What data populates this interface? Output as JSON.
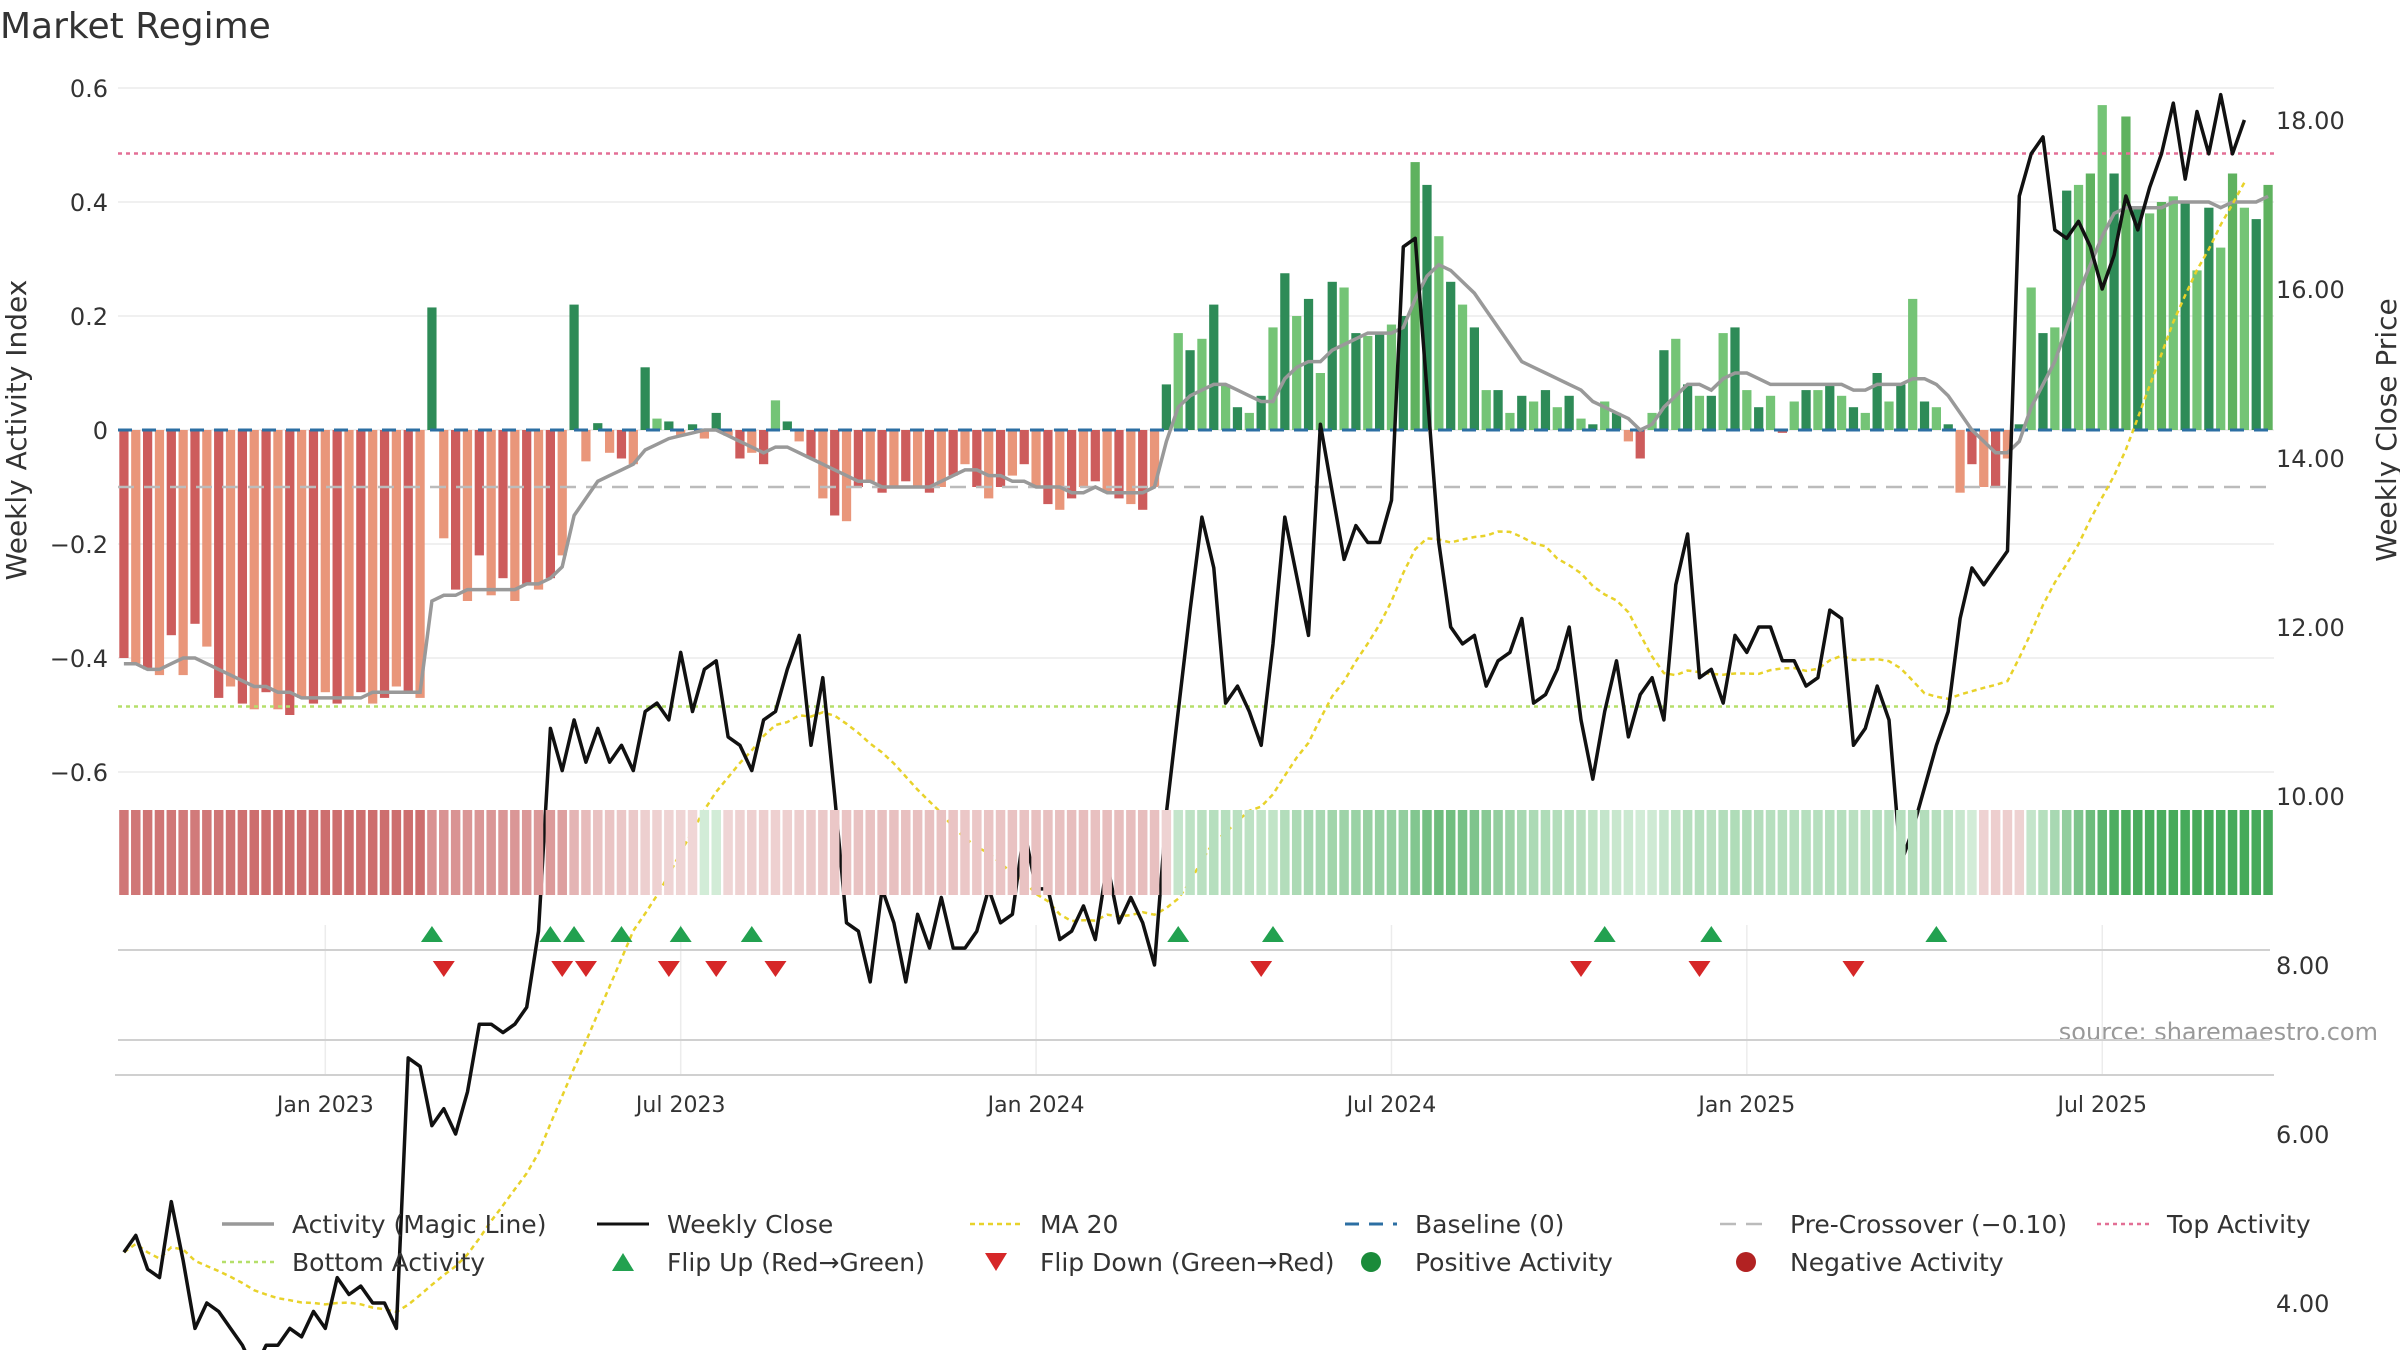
{
  "title": "Market Regime",
  "source": "source: sharemaestro.com",
  "colors": {
    "activity_line": "#999999",
    "close_line": "#111111",
    "ma20": "#e8d22a",
    "baseline": "#2c6fa3",
    "pre_crossover": "#bbbbbb",
    "top": "#e36f95",
    "bottom": "#b5df6a",
    "flip_up": "#22a150",
    "flip_down": "#d62728",
    "positive": "#1a8b3a",
    "negative": "#b22222"
  },
  "legend": [
    {
      "key": "activity",
      "label": "Activity (Magic Line)",
      "style": "line-solid-gray"
    },
    {
      "key": "close",
      "label": "Weekly Close",
      "style": "line-solid-black"
    },
    {
      "key": "ma20",
      "label": "MA 20",
      "style": "line-dotted-yellow"
    },
    {
      "key": "baseline",
      "label": "Baseline (0)",
      "style": "line-dashed-blue"
    },
    {
      "key": "precross",
      "label": "Pre-Crossover (−0.10)",
      "style": "line-dashed-gray"
    },
    {
      "key": "top",
      "label": "Top Activity",
      "style": "line-dotted-pink"
    },
    {
      "key": "bottom",
      "label": "Bottom Activity",
      "style": "line-dotted-green"
    },
    {
      "key": "flipup",
      "label": "Flip Up (Red→Green)",
      "style": "triangle-up"
    },
    {
      "key": "flipdown",
      "label": "Flip Down (Green→Red)",
      "style": "triangle-down"
    },
    {
      "key": "pos",
      "label": "Positive Activity",
      "style": "dot-green"
    },
    {
      "key": "neg",
      "label": "Negative Activity",
      "style": "dot-red"
    }
  ],
  "chart_data": {
    "type": "bar",
    "title": "Market Regime",
    "ylabel_left": "Weekly Activity Index",
    "ylabel_right": "Weekly Close Price",
    "ylim_left": [
      -0.63,
      0.6
    ],
    "ylim_right": [
      1.6,
      19.8
    ],
    "yticks_left": [
      "−0.6",
      "−0.4",
      "−0.2",
      "0",
      "0.2",
      "0.4",
      "0.6"
    ],
    "yticks_left_values": [
      -0.6,
      -0.4,
      -0.2,
      0,
      0.2,
      0.4,
      0.6
    ],
    "yticks_right": [
      "4.00",
      "6.00",
      "8.00",
      "10.00",
      "12.00",
      "14.00",
      "16.00",
      "18.00"
    ],
    "yticks_right_values": [
      4,
      6,
      8,
      10,
      12,
      14,
      16,
      18
    ],
    "xticks": [
      "Jan 2023",
      "Jul 2023",
      "Jan 2024",
      "Jul 2024",
      "Jan 2025",
      "Jul 2025"
    ],
    "xticks_week_index": [
      17,
      47,
      77,
      107,
      137,
      167
    ],
    "reference_lines": {
      "baseline": 0,
      "pre_crossover": -0.1,
      "top_activity": 0.485,
      "bottom_activity": -0.485
    },
    "activity": [
      -0.4,
      -0.41,
      -0.42,
      -0.43,
      -0.36,
      -0.43,
      -0.34,
      -0.38,
      -0.47,
      -0.45,
      -0.48,
      -0.49,
      -0.46,
      -0.49,
      -0.5,
      -0.47,
      -0.48,
      -0.46,
      -0.48,
      -0.47,
      -0.46,
      -0.48,
      -0.47,
      -0.45,
      -0.46,
      -0.47,
      0.215,
      -0.19,
      -0.28,
      -0.3,
      -0.22,
      -0.29,
      -0.26,
      -0.3,
      -0.27,
      -0.28,
      -0.26,
      -0.22,
      0.22,
      -0.055,
      0.012,
      -0.04,
      -0.05,
      -0.06,
      0.11,
      0.02,
      0.015,
      -0.01,
      0.01,
      -0.015,
      0.03,
      -0.01,
      -0.05,
      -0.04,
      -0.06,
      0.052,
      0.015,
      -0.02,
      -0.05,
      -0.12,
      -0.15,
      -0.16,
      -0.1,
      -0.09,
      -0.11,
      -0.1,
      -0.09,
      -0.1,
      -0.11,
      -0.1,
      -0.08,
      -0.06,
      -0.1,
      -0.12,
      -0.1,
      -0.08,
      -0.06,
      -0.1,
      -0.13,
      -0.14,
      -0.12,
      -0.1,
      -0.09,
      -0.11,
      -0.12,
      -0.13,
      -0.14,
      -0.1,
      0.08,
      0.17,
      0.14,
      0.16,
      0.22,
      0.08,
      0.04,
      0.03,
      0.06,
      0.18,
      0.275,
      0.2,
      0.23,
      0.1,
      0.26,
      0.25,
      0.17,
      0.165,
      0.17,
      0.185,
      0.2,
      0.47,
      0.43,
      0.34,
      0.26,
      0.22,
      0.18,
      0.07,
      0.07,
      0.03,
      0.06,
      0.05,
      0.07,
      0.04,
      0.06,
      0.02,
      0.01,
      0.05,
      0.03,
      -0.02,
      -0.05,
      0.03,
      0.14,
      0.16,
      0.08,
      0.06,
      0.06,
      0.17,
      0.18,
      0.07,
      0.04,
      0.06,
      -0.005,
      0.05,
      0.07,
      0.07,
      0.08,
      0.06,
      0.04,
      0.03,
      0.1,
      0.05,
      0.08,
      0.23,
      0.05,
      0.04,
      0.01,
      -0.11,
      -0.06,
      -0.1,
      -0.1,
      -0.05,
      0.01,
      0.25,
      0.17,
      0.18,
      0.42,
      0.43,
      0.45,
      0.57,
      0.45,
      0.55,
      0.39,
      0.38,
      0.4,
      0.41,
      0.4,
      0.28,
      0.39,
      0.32,
      0.45,
      0.39,
      0.37,
      0.43
    ],
    "magic_line": [
      -0.41,
      -0.41,
      -0.42,
      -0.42,
      -0.41,
      -0.4,
      -0.4,
      -0.41,
      -0.42,
      -0.43,
      -0.44,
      -0.45,
      -0.45,
      -0.46,
      -0.46,
      -0.47,
      -0.47,
      -0.47,
      -0.47,
      -0.47,
      -0.47,
      -0.46,
      -0.46,
      -0.46,
      -0.46,
      -0.46,
      -0.3,
      -0.29,
      -0.29,
      -0.28,
      -0.28,
      -0.28,
      -0.28,
      -0.28,
      -0.27,
      -0.27,
      -0.26,
      -0.24,
      -0.15,
      -0.12,
      -0.09,
      -0.08,
      -0.07,
      -0.06,
      -0.035,
      -0.025,
      -0.015,
      -0.01,
      -0.005,
      0.0,
      0.0,
      -0.01,
      -0.02,
      -0.03,
      -0.04,
      -0.03,
      -0.03,
      -0.04,
      -0.05,
      -0.06,
      -0.07,
      -0.08,
      -0.09,
      -0.09,
      -0.1,
      -0.1,
      -0.1,
      -0.1,
      -0.1,
      -0.09,
      -0.08,
      -0.07,
      -0.07,
      -0.08,
      -0.08,
      -0.09,
      -0.09,
      -0.1,
      -0.1,
      -0.1,
      -0.11,
      -0.11,
      -0.1,
      -0.11,
      -0.11,
      -0.11,
      -0.11,
      -0.1,
      -0.02,
      0.04,
      0.06,
      0.07,
      0.08,
      0.08,
      0.07,
      0.06,
      0.05,
      0.05,
      0.09,
      0.11,
      0.12,
      0.12,
      0.14,
      0.15,
      0.16,
      0.17,
      0.17,
      0.17,
      0.18,
      0.23,
      0.27,
      0.29,
      0.28,
      0.26,
      0.24,
      0.21,
      0.18,
      0.15,
      0.12,
      0.11,
      0.1,
      0.09,
      0.08,
      0.07,
      0.05,
      0.04,
      0.03,
      0.02,
      0.0,
      0.01,
      0.04,
      0.06,
      0.08,
      0.08,
      0.07,
      0.09,
      0.1,
      0.1,
      0.09,
      0.08,
      0.08,
      0.08,
      0.08,
      0.08,
      0.08,
      0.08,
      0.07,
      0.07,
      0.08,
      0.08,
      0.08,
      0.09,
      0.09,
      0.08,
      0.06,
      0.03,
      0.0,
      -0.02,
      -0.04,
      -0.04,
      -0.02,
      0.04,
      0.08,
      0.12,
      0.18,
      0.24,
      0.29,
      0.34,
      0.38,
      0.39,
      0.39,
      0.39,
      0.39,
      0.4,
      0.4,
      0.4,
      0.4,
      0.39,
      0.4,
      0.4,
      0.4,
      0.41
    ],
    "weekly_close": [
      4.6,
      4.8,
      4.4,
      4.3,
      5.2,
      4.5,
      3.7,
      4.0,
      3.9,
      3.7,
      3.5,
      3.2,
      3.5,
      3.5,
      3.7,
      3.6,
      3.9,
      3.7,
      4.3,
      4.1,
      4.2,
      4.0,
      4.0,
      3.7,
      6.9,
      6.8,
      6.1,
      6.3,
      6.0,
      6.5,
      7.3,
      7.3,
      7.2,
      7.3,
      7.5,
      8.4,
      10.8,
      10.3,
      10.9,
      10.4,
      10.8,
      10.4,
      10.6,
      10.3,
      11.0,
      11.1,
      10.9,
      11.7,
      11.0,
      11.5,
      11.6,
      10.7,
      10.6,
      10.3,
      10.9,
      11.0,
      11.5,
      11.9,
      10.6,
      11.4,
      10.0,
      8.5,
      8.4,
      7.8,
      8.9,
      8.5,
      7.8,
      8.6,
      8.2,
      8.8,
      8.2,
      8.2,
      8.4,
      8.9,
      8.5,
      8.6,
      9.6,
      8.9,
      8.9,
      8.3,
      8.4,
      8.7,
      8.3,
      9.2,
      8.5,
      8.8,
      8.5,
      8.0,
      9.8,
      11.0,
      12.2,
      13.3,
      12.7,
      11.1,
      11.3,
      11.0,
      10.6,
      11.8,
      13.3,
      12.6,
      11.9,
      14.4,
      13.6,
      12.8,
      13.2,
      13.0,
      13.0,
      13.5,
      16.5,
      16.6,
      14.8,
      13.0,
      12.0,
      11.8,
      11.9,
      11.3,
      11.6,
      11.7,
      12.1,
      11.1,
      11.2,
      11.5,
      12.0,
      10.9,
      10.2,
      11.0,
      11.6,
      10.7,
      11.2,
      11.4,
      10.9,
      12.5,
      13.1,
      11.4,
      11.5,
      11.1,
      11.9,
      11.7,
      12.0,
      12.0,
      11.6,
      11.6,
      11.3,
      11.4,
      12.2,
      12.1,
      10.6,
      10.8,
      11.3,
      10.9,
      9.2,
      9.6,
      10.1,
      10.6,
      11.0,
      12.1,
      12.7,
      12.5,
      12.7,
      12.9,
      17.1,
      17.6,
      17.8,
      16.7,
      16.6,
      16.8,
      16.5,
      16.0,
      16.4,
      17.1,
      16.7,
      17.2,
      17.6,
      18.2,
      17.3,
      18.1,
      17.6,
      18.3,
      17.6,
      18.0
    ],
    "flip_up_week_index": [
      26,
      36,
      38,
      42,
      47,
      53,
      89,
      97,
      125,
      134,
      153
    ],
    "flip_down_week_index": [
      27,
      37,
      39,
      46,
      50,
      55,
      96,
      123,
      133,
      146
    ]
  }
}
